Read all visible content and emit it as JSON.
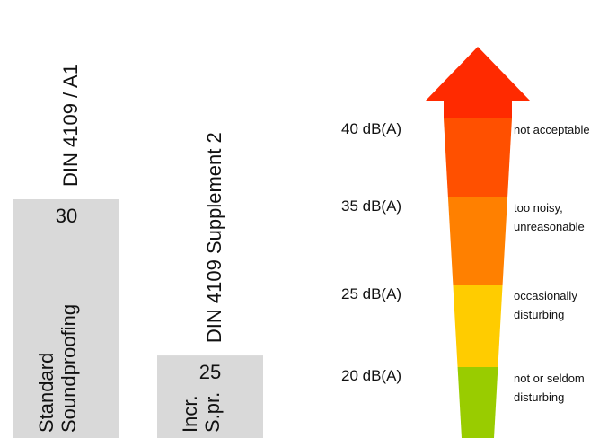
{
  "chart_data": [
    {
      "type": "bar",
      "categories": [
        "DIN 4109 / A1",
        "DIN 4109 Supplement 2"
      ],
      "values": [
        30,
        25
      ],
      "value_labels": [
        "30",
        "25"
      ],
      "bar_labels": [
        [
          "Standard",
          "Soundproofing"
        ],
        [
          "Incr.",
          "S.pr."
        ]
      ],
      "bar_color": "#d9d9d9",
      "grid": false
    },
    {
      "type": "bar",
      "bands": [
        {
          "level": 20,
          "label": "20 dB(A)",
          "description": [
            "not or seldom",
            "disturbing"
          ],
          "color": "#99cc00"
        },
        {
          "level": 25,
          "label": "25 dB(A)",
          "description": [
            "occasionally",
            "disturbing"
          ],
          "color": "#ffcc00"
        },
        {
          "level": 35,
          "label": "35 dB(A)",
          "description": [
            "too noisy,",
            "unreasonable"
          ],
          "color": "#ff8000"
        },
        {
          "level": 40,
          "label": "40 dB(A)",
          "description": [
            "not acceptable"
          ],
          "color": "#ff5000"
        }
      ],
      "arrowhead_color": "#ff2a00",
      "grid": false
    }
  ]
}
